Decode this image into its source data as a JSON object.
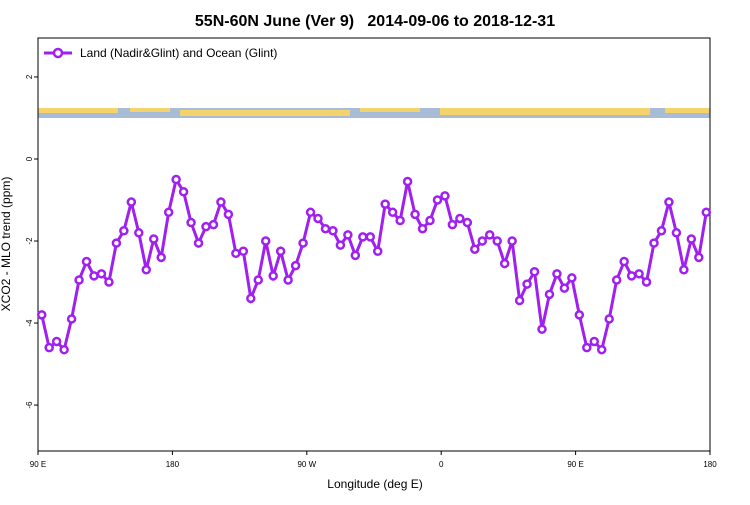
{
  "chart_data": {
    "type": "line",
    "title": "55N-60N June (Ver 9)   2014-09-06 to 2018-12-31",
    "x_label": "Longitude (deg E)",
    "y_label": "XCO2 - MLO trend (ppm)",
    "x": [
      92.5,
      97.5,
      102.5,
      107.5,
      112.5,
      117.5,
      122.5,
      127.5,
      132.5,
      137.5,
      142.5,
      147.5,
      152.5,
      157.5,
      162.5,
      167.5,
      172.5,
      177.5,
      182.5,
      187.5,
      192.5,
      197.5,
      202.5,
      207.5,
      212.5,
      217.5,
      222.5,
      227.5,
      232.5,
      237.5,
      242.5,
      247.5,
      252.5,
      257.5,
      262.5,
      267.5,
      272.5,
      277.5,
      282.5,
      287.5,
      292.5,
      297.5,
      302.5,
      307.5,
      312.5,
      317.5,
      322.5,
      327.5,
      332.5,
      337.5,
      342.5,
      347.5,
      352.5,
      357.5,
      362.5,
      367.5,
      372.5,
      377.5,
      382.5,
      387.5,
      392.5,
      397.5,
      402.5,
      407.5,
      412.5,
      417.5,
      422.5,
      427.5,
      432.5,
      437.5,
      442.5,
      447.5,
      452.5,
      457.5,
      462.5,
      467.5,
      472.5,
      477.5,
      482.5,
      487.5,
      492.5,
      497.5,
      502.5,
      507.5,
      512.5,
      517.5,
      522.5,
      527.5,
      532.5,
      537.5
    ],
    "series": [
      {
        "name": "Land (Nadir&Glint) and Ocean (Glint)",
        "color": "#a020f0",
        "values": [
          -3.8,
          -4.6,
          -4.45,
          -4.65,
          -3.9,
          -2.95,
          -2.5,
          -2.85,
          -2.8,
          -3.0,
          -2.05,
          -1.75,
          -1.05,
          -1.8,
          -2.7,
          -1.95,
          -2.4,
          -1.3,
          -0.5,
          -0.8,
          -1.55,
          -2.05,
          -1.65,
          -1.6,
          -1.05,
          -1.35,
          -2.3,
          -2.25,
          -3.4,
          -2.95,
          -2.0,
          -2.85,
          -2.25,
          -2.95,
          -2.6,
          -2.05,
          -1.3,
          -1.45,
          -1.7,
          -1.75,
          -2.1,
          -1.85,
          -2.35,
          -1.9,
          -1.9,
          -2.25,
          -1.1,
          -1.3,
          -1.5,
          -0.55,
          -1.35,
          -1.7,
          -1.5,
          -1.0,
          -0.9,
          -1.6,
          -1.45,
          -1.55,
          -2.2,
          -2.0,
          -1.85,
          -2.0,
          -2.55,
          -2.0,
          -3.45,
          -3.05,
          -2.75,
          -4.15,
          -3.3,
          -2.8,
          -3.15,
          -2.9,
          -3.8,
          -4.6,
          -4.45,
          -4.65,
          -3.9,
          -2.95,
          -2.5,
          -2.85,
          -2.8,
          -3.0,
          -2.05,
          -1.75,
          -1.05,
          -1.8,
          -2.7,
          -1.95,
          -2.4,
          -1.3
        ]
      }
    ],
    "xlim": [
      90,
      540
    ],
    "xticks": [
      {
        "value": 90,
        "label": "90 E"
      },
      180,
      {
        "value": 270,
        "label": "90 W"
      },
      {
        "value": 360,
        "label": "0"
      },
      {
        "value": 450,
        "label": "90 E"
      },
      {
        "value": 540,
        "label": "180"
      }
    ],
    "ylim": [
      -7.12,
      2.95
    ],
    "yticks": [
      -6,
      -4,
      -2,
      0,
      2
    ],
    "legend": "top-left"
  }
}
